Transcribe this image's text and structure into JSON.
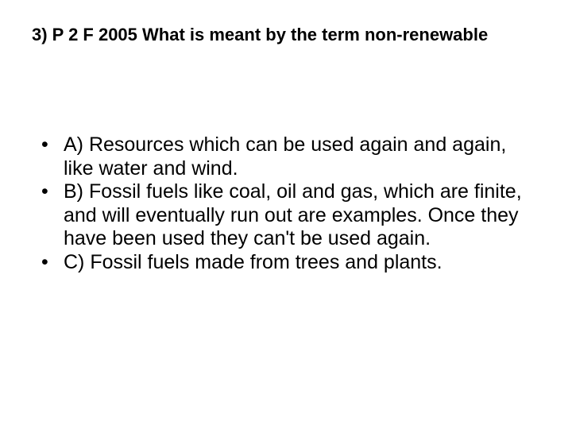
{
  "background_color": "#ffffff",
  "text_color": "#000000",
  "font_family": "Arial",
  "title": {
    "text": "3)  P 2 F 2005 What is meant by the term non-renewable",
    "fontsize": 22,
    "fontweight": "bold"
  },
  "body": {
    "fontsize": 25,
    "bullet_char": "•",
    "items": [
      "A) Resources which can be used again and again, like water and wind.",
      "B) Fossil fuels like coal, oil and gas, which are finite, and will eventually run out are examples. Once they have been used they can't be used again.",
      "C) Fossil fuels made from trees and plants."
    ]
  }
}
